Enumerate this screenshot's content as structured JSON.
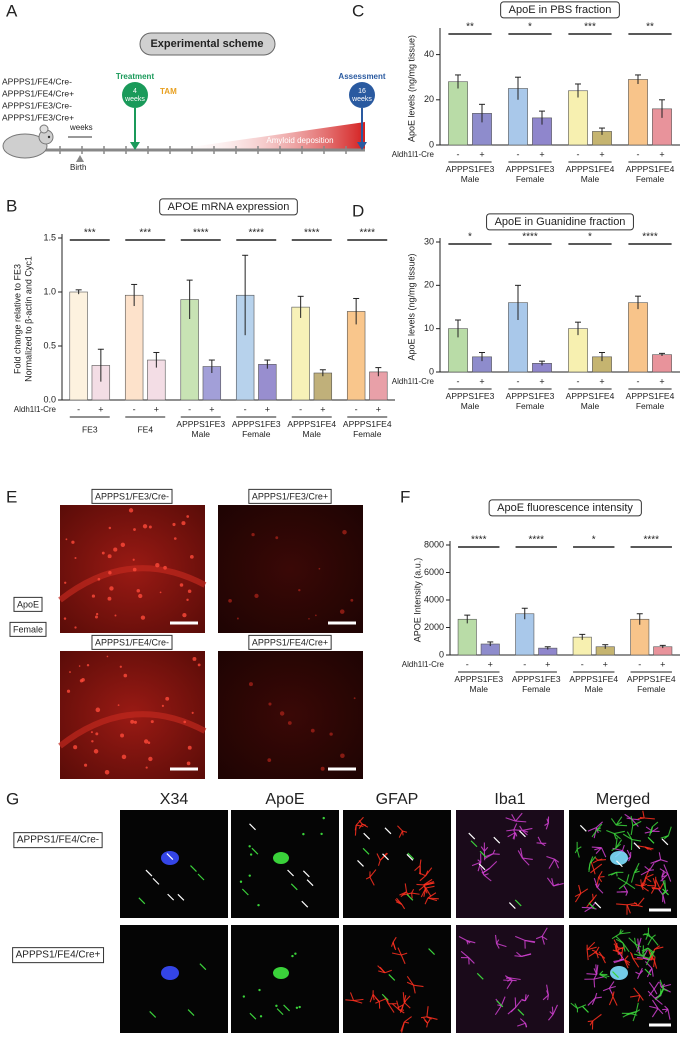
{
  "panel_labels": [
    "A",
    "B",
    "C",
    "D",
    "E",
    "F",
    "G"
  ],
  "scheme": {
    "title": "Experimental scheme",
    "genotypes": [
      "APPPS1/FE4/Cre-",
      "APPPS1/FE4/Cre+",
      "APPPS1/FE3/Cre-",
      "APPPS1/FE3/Cre+"
    ],
    "treatment": "Treatment",
    "treatment_duration": "4\nweeks",
    "drug": "TAM",
    "assessment": "Assessment",
    "assessment_duration": "16\nweeks",
    "time_unit": "weeks",
    "birth": "Birth",
    "amyloid": "Amyloid deposition"
  },
  "chart_data": [
    {
      "type": "bar",
      "title": "APOE mRNA expression",
      "ylabel": "Fold change relative to FE3\nNormalized to β-actin and Cyc1",
      "xlabel": "Aldh1l1-Cre",
      "categories": [
        "FE3",
        "FE4",
        "APPPS1FE3\nMale",
        "APPPS1FE3\nFemale",
        "APPPS1FE4\nMale",
        "APPPS1FE4\nFemale"
      ],
      "series": [
        {
          "name": "-",
          "colors": [
            "#fdf2df",
            "#fde2cb",
            "#c8e3b4",
            "#b7d2ec",
            "#f7f1b8",
            "#f9c68c"
          ],
          "values": [
            1.0,
            0.97,
            0.93,
            0.97,
            0.86,
            0.82
          ],
          "errors": [
            0.02,
            0.1,
            0.18,
            0.37,
            0.1,
            0.12
          ]
        },
        {
          "name": "+",
          "colors": [
            "#f3dde5",
            "#f3dde5",
            "#a29fd8",
            "#988ecf",
            "#c0b07a",
            "#e8a0a8"
          ],
          "values": [
            0.32,
            0.37,
            0.31,
            0.33,
            0.25,
            0.26
          ],
          "errors": [
            0.15,
            0.07,
            0.06,
            0.04,
            0.03,
            0.04
          ]
        }
      ],
      "significance": [
        "***",
        "***",
        "****",
        "****",
        "****",
        "****"
      ],
      "ylim": [
        0,
        1.5
      ],
      "yticks": [
        {
          "value": 0,
          "label": "0.0"
        },
        0.5,
        {
          "value": 1,
          "label": "1.0"
        },
        1.5
      ]
    },
    {
      "type": "bar",
      "title": "ApoE in PBS fraction",
      "ylabel": "ApoE levels (ng/mg tissue)",
      "xlabel": "Aldh1l1-Cre",
      "categories": [
        "APPPS1FE3\nMale",
        "APPPS1FE3\nFemale",
        "APPPS1FE4\nMale",
        "APPPS1FE4\nFemale"
      ],
      "series": [
        {
          "name": "-",
          "colors": [
            "#b9dca7",
            "#a9c8ea",
            "#f7f0b0",
            "#f8c48a"
          ],
          "values": [
            28,
            25,
            24,
            29
          ],
          "errors": [
            3,
            5,
            3,
            2
          ]
        },
        {
          "name": "+",
          "colors": [
            "#8e8ccc",
            "#8f86cc",
            "#c5b470",
            "#e8939b"
          ],
          "values": [
            14,
            12,
            6,
            16
          ],
          "errors": [
            4,
            3,
            1.5,
            4
          ]
        }
      ],
      "significance": [
        "**",
        "*",
        "***",
        "**"
      ],
      "ylim": [
        0,
        50
      ],
      "yticks": [
        0,
        20,
        40
      ]
    },
    {
      "type": "bar",
      "title": "ApoE in Guanidine fraction",
      "ylabel": "ApoE levels (ng/mg tissue)",
      "xlabel": "Aldh1l1-Cre",
      "categories": [
        "APPPS1FE3\nMale",
        "APPPS1FE3\nFemale",
        "APPPS1FE4\nMale",
        "APPPS1FE4\nFemale"
      ],
      "series": [
        {
          "name": "-",
          "colors": [
            "#b9dca7",
            "#a9c8ea",
            "#f7f0b0",
            "#f8c48a"
          ],
          "values": [
            10,
            16,
            10,
            16
          ],
          "errors": [
            2,
            4,
            1.5,
            1.5
          ]
        },
        {
          "name": "+",
          "colors": [
            "#8e8ccc",
            "#8f86cc",
            "#c5b470",
            "#e8939b"
          ],
          "values": [
            3.5,
            2,
            3.5,
            4
          ],
          "errors": [
            1,
            0.5,
            1,
            0.3
          ]
        }
      ],
      "significance": [
        "*",
        "****",
        "*",
        "****"
      ],
      "ylim": [
        0,
        30
      ],
      "yticks": [
        0,
        10,
        20,
        30
      ]
    },
    {
      "type": "bar",
      "title": "ApoE fluorescence intensity",
      "ylabel": "APOE Intensity (a.u.)",
      "xlabel": "Aldh1l1-Cre",
      "categories": [
        "APPPS1FE3\nMale",
        "APPPS1FE3\nFemale",
        "APPPS1FE4\nMale",
        "APPPS1FE4\nFemale"
      ],
      "series": [
        {
          "name": "-",
          "colors": [
            "#b9dca7",
            "#a9c8ea",
            "#f7f0b0",
            "#f8c48a"
          ],
          "values": [
            2600,
            3000,
            1300,
            2600
          ],
          "errors": [
            300,
            400,
            200,
            400
          ]
        },
        {
          "name": "+",
          "colors": [
            "#8e8ccc",
            "#8f86cc",
            "#c5b470",
            "#e8939b"
          ],
          "values": [
            800,
            500,
            600,
            600
          ],
          "errors": [
            150,
            100,
            150,
            100
          ]
        }
      ],
      "significance": [
        "****",
        "****",
        "*",
        "****"
      ],
      "ylim": [
        0,
        8000
      ],
      "yticks": [
        0,
        2000,
        4000,
        6000,
        8000
      ]
    }
  ],
  "imaging_e": {
    "panels": [
      "APPPS1/FE3/Cre-",
      "APPPS1/FE3/Cre+",
      "APPPS1/FE4/Cre-",
      "APPPS1/FE4/Cre+"
    ],
    "stain": "ApoE",
    "sex": "Female"
  },
  "imaging_g": {
    "columns": [
      "X34",
      "ApoE",
      "GFAP",
      "Iba1",
      "Merged"
    ],
    "rows": [
      "APPPS1/FE4/Cre-",
      "APPPS1/FE4/Cre+"
    ]
  }
}
